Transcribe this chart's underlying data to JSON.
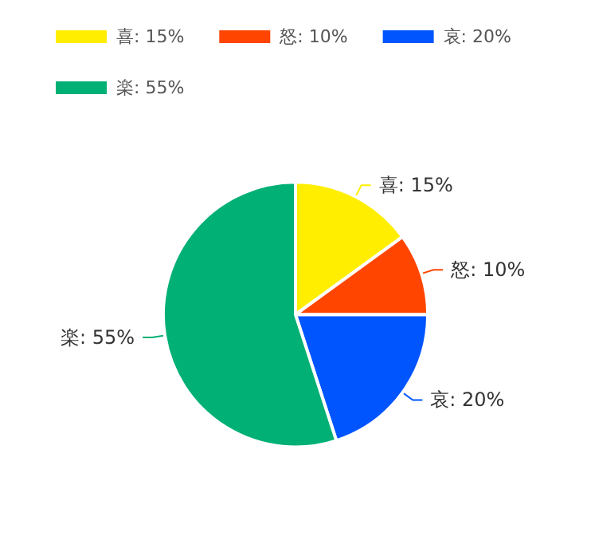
{
  "chart_data": {
    "type": "pie",
    "categories": [
      "喜",
      "怒",
      "哀",
      "楽"
    ],
    "values": [
      15,
      10,
      20,
      55
    ],
    "value_labels": [
      "15%",
      "10%",
      "20%",
      "55%"
    ],
    "colors": [
      "#ffee00",
      "#ff4500",
      "#0055ff",
      "#00b074"
    ],
    "legend": "top left"
  }
}
